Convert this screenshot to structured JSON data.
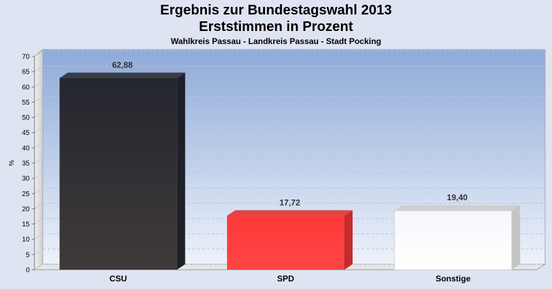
{
  "header": {
    "title": "Ergebnis zur Bundestagswahl 2013",
    "subtitle": "Erststimmen in Prozent",
    "region": "Wahlkreis Passau - Landkreis Passau - Stadt Pocking"
  },
  "chart_data": {
    "type": "bar",
    "title": "Ergebnis zur Bundestagswahl 2013",
    "subtitle": "Erststimmen in Prozent",
    "xlabel": "",
    "ylabel": "%",
    "ylim": [
      0,
      70
    ],
    "ytick_step": 5,
    "grid": true,
    "categories": [
      "CSU",
      "SPD",
      "Sonstige"
    ],
    "values": [
      62.88,
      17.72,
      19.4
    ],
    "value_labels": [
      "62,88",
      "17,72",
      "19,40"
    ],
    "colors": [
      "#2b2d36",
      "#ff3b3b",
      "#ffffff"
    ]
  }
}
